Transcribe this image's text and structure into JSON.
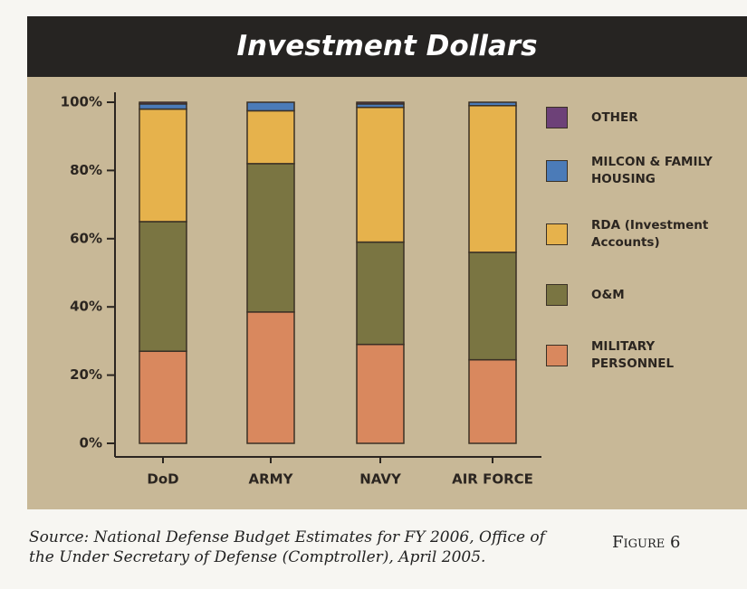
{
  "chart_data": {
    "type": "stacked_bar",
    "title": "Investment Dollars",
    "categories": [
      "DoD",
      "ARMY",
      "NAVY",
      "AIR FORCE"
    ],
    "series": [
      {
        "name": "MILITARY PERSONNEL",
        "color": "#d9885e",
        "values": [
          27,
          38.5,
          29,
          24.5
        ]
      },
      {
        "name": "O&M",
        "color": "#7a7542",
        "values": [
          38,
          43.5,
          30,
          31.5
        ]
      },
      {
        "name": "RDA (Investment Accounts)",
        "color": "#e6b24c",
        "values": [
          33,
          15.5,
          39.5,
          43
        ]
      },
      {
        "name": "MILCON & FAMILY HOUSING",
        "color": "#4b7bb8",
        "values": [
          1.5,
          2.5,
          1,
          1
        ]
      },
      {
        "name": "OTHER",
        "color": "#6d4178",
        "values": [
          0.5,
          0,
          0.5,
          0
        ]
      }
    ],
    "ylim": [
      0,
      100
    ],
    "yticks": [
      {
        "value": 0,
        "label": "0%"
      },
      {
        "value": 20,
        "label": "20%"
      },
      {
        "value": 40,
        "label": "40%"
      },
      {
        "value": 60,
        "label": "60%"
      },
      {
        "value": 80,
        "label": "80%"
      },
      {
        "value": 100,
        "label": "100%"
      }
    ],
    "source": "Source: National Defense Budget Estimates for FY 2006, Office of the Under Secretary of Defense (Comptroller), April 2005.",
    "figure_label": "Figure 6"
  }
}
